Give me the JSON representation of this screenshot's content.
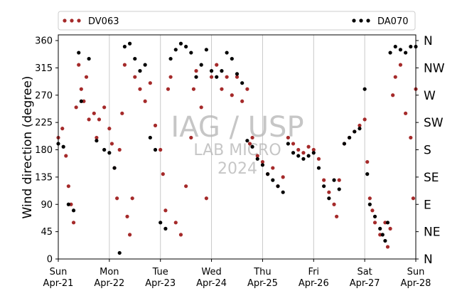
{
  "chart_data": {
    "type": "scatter",
    "title": "",
    "xlabel": "",
    "ylabel": "Wind direction (degree)",
    "ylim": [
      0,
      370
    ],
    "yticks": [
      0,
      45,
      90,
      135,
      180,
      225,
      270,
      315,
      360
    ],
    "x_tick_days": [
      "Sun",
      "Mon",
      "Tue",
      "Wed",
      "Thu",
      "Fri",
      "Sat",
      "Sun"
    ],
    "x_tick_dates": [
      "Apr-21",
      "Apr-22",
      "Apr-23",
      "Apr-24",
      "Apr-25",
      "Apr-26",
      "Apr-27",
      "Apr-28"
    ],
    "compass_labels": [
      "N",
      "NE",
      "E",
      "SE",
      "S",
      "SW",
      "W",
      "NW",
      "N"
    ],
    "grid": "vertical lines at day ticks",
    "legend_placement": "top, above plot",
    "watermark": [
      "IAG / USP",
      "LAB MICRO",
      "2024"
    ],
    "x_range_days": [
      0,
      7
    ],
    "series": [
      {
        "name": "DV063",
        "color": "#a52a2a",
        "points": [
          [
            0.0,
            200
          ],
          [
            0.08,
            215
          ],
          [
            0.15,
            170
          ],
          [
            0.2,
            120
          ],
          [
            0.25,
            90
          ],
          [
            0.3,
            60
          ],
          [
            0.35,
            250
          ],
          [
            0.4,
            320
          ],
          [
            0.45,
            280
          ],
          [
            0.5,
            260
          ],
          [
            0.55,
            300
          ],
          [
            0.6,
            230
          ],
          [
            0.7,
            240
          ],
          [
            0.75,
            200
          ],
          [
            0.8,
            230
          ],
          [
            0.9,
            250
          ],
          [
            1.0,
            215
          ],
          [
            1.05,
            190
          ],
          [
            1.1,
            150
          ],
          [
            1.15,
            100
          ],
          [
            1.2,
            180
          ],
          [
            1.25,
            240
          ],
          [
            1.3,
            320
          ],
          [
            1.35,
            70
          ],
          [
            1.4,
            40
          ],
          [
            1.45,
            100
          ],
          [
            1.5,
            300
          ],
          [
            1.6,
            280
          ],
          [
            1.7,
            260
          ],
          [
            1.8,
            290
          ],
          [
            1.9,
            220
          ],
          [
            2.0,
            180
          ],
          [
            2.05,
            140
          ],
          [
            2.1,
            80
          ],
          [
            2.15,
            280
          ],
          [
            2.2,
            300
          ],
          [
            2.3,
            60
          ],
          [
            2.4,
            40
          ],
          [
            2.5,
            120
          ],
          [
            2.6,
            200
          ],
          [
            2.65,
            280
          ],
          [
            2.7,
            310
          ],
          [
            2.8,
            250
          ],
          [
            2.9,
            100
          ],
          [
            3.0,
            300
          ],
          [
            3.1,
            320
          ],
          [
            3.2,
            280
          ],
          [
            3.3,
            300
          ],
          [
            3.4,
            270
          ],
          [
            3.5,
            300
          ],
          [
            3.6,
            260
          ],
          [
            3.7,
            280
          ],
          [
            3.75,
            190
          ],
          [
            3.8,
            200
          ],
          [
            3.9,
            170
          ],
          [
            4.0,
            160
          ],
          [
            4.1,
            140
          ],
          [
            4.2,
            150
          ],
          [
            4.3,
            120
          ],
          [
            4.4,
            135
          ],
          [
            4.5,
            200
          ],
          [
            4.6,
            190
          ],
          [
            4.7,
            180
          ],
          [
            4.8,
            175
          ],
          [
            4.9,
            185
          ],
          [
            5.0,
            180
          ],
          [
            5.1,
            165
          ],
          [
            5.2,
            130
          ],
          [
            5.3,
            110
          ],
          [
            5.4,
            90
          ],
          [
            5.45,
            70
          ],
          [
            5.5,
            130
          ],
          [
            5.6,
            190
          ],
          [
            5.7,
            200
          ],
          [
            5.8,
            210
          ],
          [
            5.9,
            220
          ],
          [
            6.0,
            230
          ],
          [
            6.05,
            160
          ],
          [
            6.1,
            100
          ],
          [
            6.15,
            80
          ],
          [
            6.2,
            60
          ],
          [
            6.3,
            40
          ],
          [
            6.4,
            60
          ],
          [
            6.45,
            20
          ],
          [
            6.5,
            50
          ],
          [
            6.55,
            270
          ],
          [
            6.6,
            300
          ],
          [
            6.7,
            320
          ],
          [
            6.8,
            240
          ],
          [
            6.9,
            200
          ],
          [
            6.95,
            100
          ],
          [
            7.0,
            280
          ]
        ]
      },
      {
        "name": "DA070",
        "color": "#000000",
        "points": [
          [
            0.0,
            190
          ],
          [
            0.1,
            185
          ],
          [
            0.2,
            90
          ],
          [
            0.3,
            80
          ],
          [
            0.4,
            340
          ],
          [
            0.45,
            260
          ],
          [
            0.6,
            330
          ],
          [
            0.75,
            195
          ],
          [
            0.9,
            180
          ],
          [
            1.0,
            175
          ],
          [
            1.1,
            150
          ],
          [
            1.2,
            10
          ],
          [
            1.3,
            350
          ],
          [
            1.4,
            355
          ],
          [
            1.5,
            330
          ],
          [
            1.6,
            310
          ],
          [
            1.7,
            320
          ],
          [
            1.8,
            200
          ],
          [
            1.9,
            180
          ],
          [
            2.0,
            60
          ],
          [
            2.1,
            50
          ],
          [
            2.2,
            330
          ],
          [
            2.3,
            345
          ],
          [
            2.4,
            355
          ],
          [
            2.5,
            350
          ],
          [
            2.6,
            340
          ],
          [
            2.7,
            300
          ],
          [
            2.8,
            320
          ],
          [
            2.9,
            345
          ],
          [
            3.0,
            310
          ],
          [
            3.1,
            300
          ],
          [
            3.2,
            310
          ],
          [
            3.3,
            340
          ],
          [
            3.4,
            330
          ],
          [
            3.5,
            305
          ],
          [
            3.6,
            290
          ],
          [
            3.7,
            195
          ],
          [
            3.8,
            185
          ],
          [
            3.9,
            165
          ],
          [
            4.0,
            155
          ],
          [
            4.1,
            140
          ],
          [
            4.2,
            130
          ],
          [
            4.3,
            120
          ],
          [
            4.4,
            110
          ],
          [
            4.5,
            190
          ],
          [
            4.6,
            175
          ],
          [
            4.7,
            170
          ],
          [
            4.8,
            165
          ],
          [
            4.9,
            170
          ],
          [
            5.0,
            175
          ],
          [
            5.1,
            150
          ],
          [
            5.2,
            120
          ],
          [
            5.3,
            100
          ],
          [
            5.4,
            130
          ],
          [
            5.5,
            115
          ],
          [
            5.6,
            190
          ],
          [
            5.7,
            200
          ],
          [
            5.8,
            210
          ],
          [
            5.9,
            215
          ],
          [
            6.0,
            280
          ],
          [
            6.05,
            140
          ],
          [
            6.1,
            90
          ],
          [
            6.2,
            70
          ],
          [
            6.3,
            50
          ],
          [
            6.35,
            40
          ],
          [
            6.4,
            30
          ],
          [
            6.45,
            60
          ],
          [
            6.5,
            340
          ],
          [
            6.6,
            350
          ],
          [
            6.7,
            345
          ],
          [
            6.8,
            340
          ],
          [
            6.9,
            350
          ],
          [
            7.0,
            350
          ]
        ]
      }
    ]
  }
}
